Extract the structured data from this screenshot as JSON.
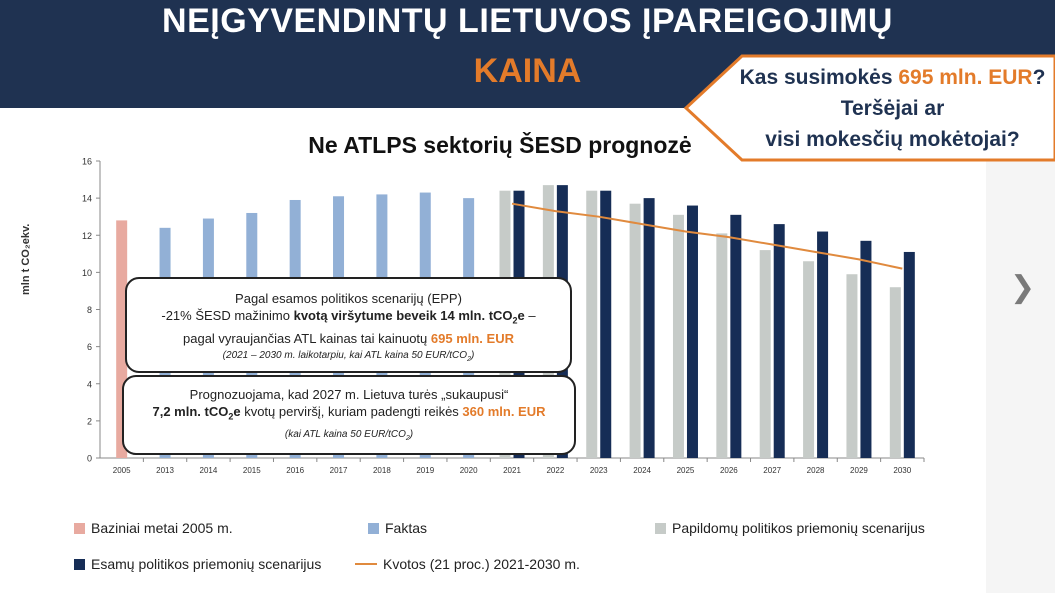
{
  "header": {
    "title_line1": "NEĮGYVENDINTŲ LIETUVOS ĮPAREIGOJIMŲ",
    "title_line2": "KAINA"
  },
  "callout": {
    "line1_pre": "Kas susimokės ",
    "line1_amount": "695 mln. EUR",
    "line1_post": "?",
    "line2": "Teršėjai ar",
    "line3": "visi mokesčių mokėtojai?"
  },
  "box1": {
    "line1": "Pagal esamos politikos scenarijų (EPP)",
    "line2_pre": "-21% ŠESD mažinimo ",
    "line2_bold": "kvotą viršytume beveik 14 mln. tCO",
    "line2_sub": "2",
    "line2_bold2": "e",
    "line2_post": " –",
    "line3_pre": "pagal vyraujančias ATL kainas tai kainuotų ",
    "line3_amount": "695 mln. EUR",
    "line4": "(2021 – 2030 m. laikotarpiu, kai ATL kaina 50 EUR/tCO",
    "line4_sub": "2",
    "line4_post": ")"
  },
  "box2": {
    "line1": "Prognozuojama, kad 2027 m. Lietuva turės „sukaupusi“",
    "line2_bold": "7,2 mln. tCO",
    "line2_sub": "2",
    "line2_bold2": "e",
    "line2_mid": " kvotų perviršį, kuriam padengti reikės ",
    "line2_amount": "360 mln. EUR",
    "line3": "(kai ATL kaina 50 EUR/tCO",
    "line3_sub": "2",
    "line3_post": ")"
  },
  "chart_data": {
    "type": "bar",
    "title": "Ne ATLPS sektorių ŠESD prognozė",
    "ylabel": "mln t CO₂ekv.",
    "ylim": [
      0,
      16
    ],
    "yticks": [
      "0",
      "2",
      "4",
      "6",
      "8",
      "10",
      "12",
      "14",
      "16"
    ],
    "categories": [
      "2005",
      "2013",
      "2014",
      "2015",
      "2016",
      "2017",
      "2018",
      "2019",
      "2020",
      "2021",
      "2022",
      "2023",
      "2024",
      "2025",
      "2026",
      "2027",
      "2028",
      "2029",
      "2030"
    ],
    "series": [
      {
        "name": "Baziniai metai 2005 m.",
        "color": "#e8aaa0",
        "values": [
          12.8,
          null,
          null,
          null,
          null,
          null,
          null,
          null,
          null,
          null,
          null,
          null,
          null,
          null,
          null,
          null,
          null,
          null,
          null
        ]
      },
      {
        "name": "Faktas",
        "color": "#92b0d6",
        "values": [
          null,
          12.4,
          12.9,
          13.2,
          13.9,
          14.1,
          14.2,
          14.3,
          14.0,
          null,
          null,
          null,
          null,
          null,
          null,
          null,
          null,
          null,
          null
        ]
      },
      {
        "name": "Papildomų politikos priemonių scenarijus",
        "color": "#c6cbc8",
        "values": [
          null,
          null,
          null,
          null,
          null,
          null,
          null,
          null,
          null,
          14.4,
          14.7,
          14.4,
          13.7,
          13.1,
          12.1,
          11.2,
          10.6,
          9.9,
          9.2
        ]
      },
      {
        "name": "Esamų politikos priemonių scenarijus",
        "color": "#162d56",
        "values": [
          null,
          null,
          null,
          null,
          null,
          null,
          null,
          null,
          null,
          14.4,
          14.7,
          14.4,
          14.0,
          13.6,
          13.1,
          12.6,
          12.2,
          11.7,
          11.1
        ]
      },
      {
        "name": "Kvotos (21 proc.) 2021-2030 m.",
        "color": "#e08a3e",
        "type": "line",
        "values": [
          null,
          null,
          null,
          null,
          null,
          null,
          null,
          null,
          null,
          13.7,
          13.3,
          13.0,
          12.6,
          12.2,
          11.9,
          11.5,
          11.1,
          10.7,
          10.2
        ]
      }
    ],
    "legend": "bottom"
  }
}
